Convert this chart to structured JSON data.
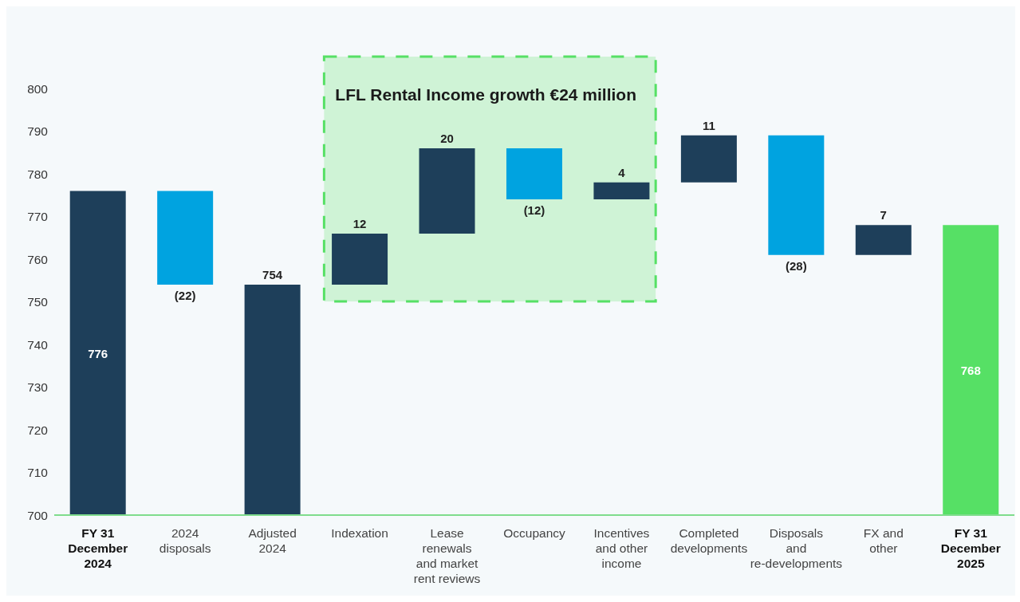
{
  "chart_data": {
    "type": "bar",
    "categories": [
      "FY 31 December 2024",
      "2024 disposals",
      "Adjusted 2024",
      "Indexation",
      "Lease renewals and market rent reviews",
      "Occupancy",
      "Incentives and other income",
      "Completed developments",
      "Disposals and re-developments",
      "FX and other",
      "FY 31 December 2025"
    ],
    "values": [
      776,
      -22,
      754,
      12,
      20,
      -12,
      4,
      11,
      -28,
      7,
      768
    ],
    "base": [
      null,
      776,
      null,
      754,
      766,
      786,
      774,
      778,
      789,
      761,
      null
    ],
    "colors": [
      "#1e3f5a",
      "#00a3e0",
      "#1e3f5a",
      "#1e3f5a",
      "#1e3f5a",
      "#00a3e0",
      "#1e3f5a",
      "#1e3f5a",
      "#00a3e0",
      "#1e3f5a",
      "#56e065"
    ],
    "value_labels": [
      "776",
      "(22)",
      "754",
      "12",
      "20",
      "(12)",
      "4",
      "11",
      "(28)",
      "7",
      "768"
    ],
    "ylim": [
      700,
      800
    ],
    "yticks": [
      700,
      710,
      720,
      730,
      740,
      750,
      760,
      770,
      780,
      790,
      800
    ],
    "grid": false,
    "legend": false,
    "bands": [
      {
        "axis": "x",
        "from": "Indexation",
        "to": "Incentives and other income",
        "label": "LFL Rental Income growth €24 million",
        "color": "#cff3d6"
      }
    ]
  }
}
